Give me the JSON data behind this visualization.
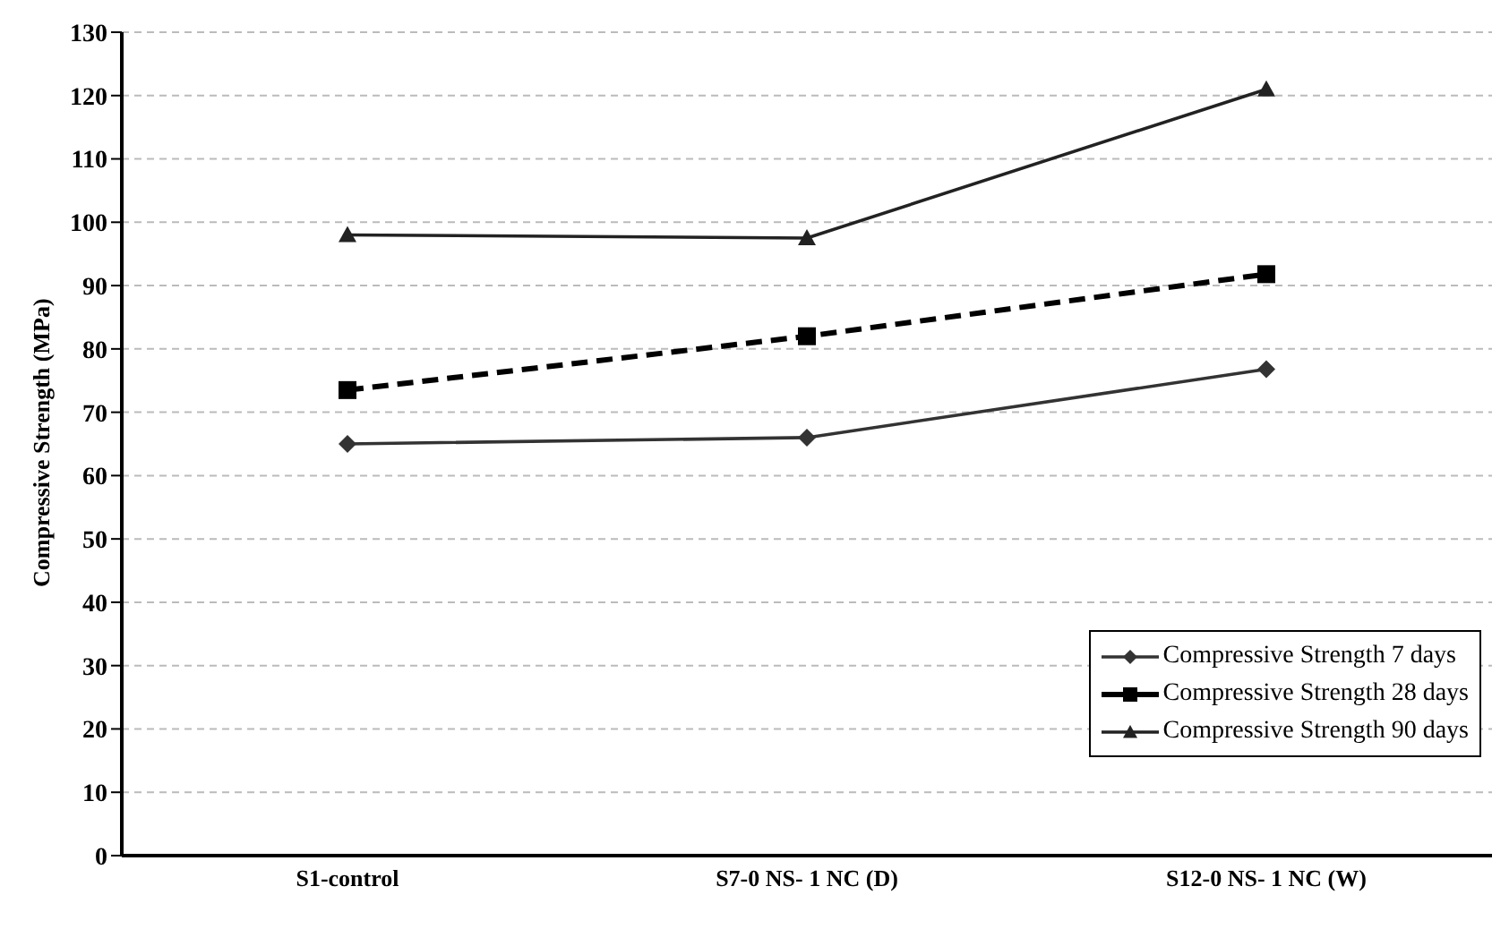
{
  "chart_data": {
    "type": "line",
    "ylabel": "Compressive Strength (MPa)",
    "categories": [
      "S1-control",
      "S7-0 NS- 1 NC (D)",
      "S12-0 NS- 1 NC (W)"
    ],
    "series": [
      {
        "name": "Compressive Strength 7 days",
        "color": "#333333",
        "values": [
          65,
          66,
          76.8
        ],
        "marker": "diamond",
        "line_style": "solid"
      },
      {
        "name": "Compressive Strength 28 days",
        "color": "#000000",
        "values": [
          73.5,
          82,
          91.8
        ],
        "marker": "square",
        "line_style": "dashed"
      },
      {
        "name": "Compressive Strength 90 days",
        "color": "#222222",
        "values": [
          98,
          97.5,
          121
        ],
        "marker": "triangle",
        "line_style": "solid"
      }
    ],
    "ylim": [
      0,
      130
    ],
    "yticks": [
      0,
      10,
      20,
      30,
      40,
      50,
      60,
      70,
      80,
      90,
      100,
      110,
      120,
      130
    ],
    "grid": "y",
    "legend": "bottom right"
  }
}
